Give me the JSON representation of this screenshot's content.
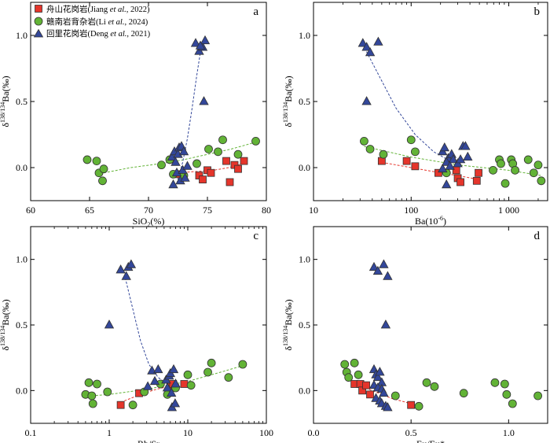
{
  "legend": [
    {
      "name": "舟山花岗岩(Jiang ",
      "et": "et al.",
      "tail": ", 2022)",
      "marker": "square",
      "color": "#e5352b"
    },
    {
      "name": "赣南岩背杂岩(Li ",
      "et": "et al.",
      "tail": ", 2024)",
      "marker": "circle",
      "color": "#62b336"
    },
    {
      "name": "回里花岗岩(Deng ",
      "et": "et al.",
      "tail": ", 2021)",
      "marker": "triangle",
      "color": "#33479a"
    }
  ],
  "colors": {
    "zhoushan": "#e5352b",
    "gannan": "#62b336",
    "huili": "#33479a",
    "stroke": "#333333"
  },
  "chart_data": [
    {
      "panel": "a",
      "type": "scatter",
      "xlabel": "SiO2(%)",
      "xlabel_base": "SiO",
      "xlabel_sub": "2",
      "xlabel_tail": "(%)",
      "ylabel": "δ138/134Ba(‰)",
      "xscale": "linear",
      "xlim": [
        60,
        80
      ],
      "ylim": [
        -0.25,
        1.25
      ],
      "xticks": [
        60,
        65,
        70,
        75,
        80
      ],
      "xticklabels": [
        "60",
        "65",
        "70",
        "75",
        "80"
      ],
      "yticks": [
        0.0,
        0.5,
        1.0
      ],
      "yticklabels": [
        "0.0",
        "0.5",
        "1.0"
      ],
      "series": [
        {
          "name": "舟山花岗岩",
          "marker": "square",
          "x": [
            72.6,
            74.3,
            74.6,
            75.0,
            75.3,
            76.6,
            76.9,
            77.3,
            77.6,
            78.1
          ],
          "y": [
            -0.05,
            -0.06,
            -0.09,
            -0.02,
            -0.04,
            0.05,
            -0.11,
            0.02,
            -0.01,
            0.05
          ]
        },
        {
          "name": "赣南岩背杂岩",
          "marker": "circle",
          "x": [
            64.8,
            65.6,
            65.8,
            66.2,
            66.1,
            71.1,
            71.8,
            72.1,
            73.0,
            74.1,
            75.1,
            75.9,
            76.3,
            77.6,
            79.1
          ],
          "y": [
            0.06,
            0.05,
            -0.04,
            -0.01,
            -0.1,
            0.02,
            0.06,
            -0.05,
            -0.06,
            0.03,
            0.14,
            0.12,
            0.21,
            0.1,
            0.2
          ]
        },
        {
          "name": "回里花岗岩",
          "marker": "triangle",
          "x": [
            72.0,
            72.2,
            72.3,
            72.5,
            72.6,
            72.8,
            73.0,
            72.4,
            72.9,
            73.3,
            72.1,
            72.7,
            73.1,
            74.0,
            74.3,
            74.6,
            74.8,
            74.4,
            74.7
          ],
          "y": [
            0.08,
            0.12,
            0.04,
            0.1,
            0.15,
            0.16,
            0.12,
            -0.04,
            -0.02,
            0.01,
            -0.13,
            -0.1,
            -0.08,
            0.94,
            0.88,
            0.91,
            0.96,
            0.92,
            0.5
          ]
        }
      ],
      "trend": [
        {
          "color": "#e5352b",
          "x": [
            72.3,
            74.0,
            75.5,
            76.8,
            78.0
          ],
          "y": [
            -0.04,
            -0.03,
            -0.02,
            0.0,
            0.03
          ]
        },
        {
          "color": "#62b336",
          "x": [
            66.2,
            68.5,
            71.0,
            73.0,
            75.0,
            77.0,
            79.0
          ],
          "y": [
            -0.04,
            0.0,
            0.03,
            0.06,
            0.1,
            0.14,
            0.19
          ]
        },
        {
          "color": "#33479a",
          "x": [
            72.4,
            72.9,
            73.3,
            73.7,
            74.1,
            74.5
          ],
          "y": [
            -0.12,
            0.04,
            0.22,
            0.45,
            0.7,
            0.93
          ]
        }
      ]
    },
    {
      "panel": "b",
      "type": "scatter",
      "xlabel": "Ba(10-6)",
      "xlabel_base": "Ba(10",
      "xlabel_sup": "-6",
      "xlabel_tail": ")",
      "ylabel": "δ138/134Ba(‰)",
      "xscale": "log",
      "xlim": [
        10,
        2500
      ],
      "ylim": [
        -0.25,
        1.25
      ],
      "xticks": [
        10,
        100,
        1000
      ],
      "xticklabels": [
        "10",
        "100",
        "1 000"
      ],
      "yticks": [
        0.0,
        0.5,
        1.0
      ],
      "yticklabels": [
        "0.0",
        "0.5",
        "1.0"
      ],
      "series": [
        {
          "name": "舟山花岗岩",
          "marker": "square",
          "x": [
            50,
            90,
            110,
            190,
            290,
            300,
            320,
            470,
            490
          ],
          "y": [
            0.05,
            0.05,
            0.01,
            -0.04,
            -0.02,
            -0.08,
            -0.11,
            -0.1,
            -0.04
          ]
        },
        {
          "name": "赣南岩背杂岩",
          "marker": "circle",
          "x": [
            33,
            38,
            52,
            100,
            110,
            230,
            690,
            800,
            830,
            920,
            1060,
            1100,
            1160,
            1580,
            1800,
            2000,
            2150
          ],
          "y": [
            0.2,
            0.14,
            0.1,
            0.21,
            0.12,
            -0.04,
            -0.02,
            0.06,
            0.03,
            -0.12,
            0.06,
            0.03,
            -0.02,
            0.06,
            -0.04,
            0.02,
            -0.1
          ]
        },
        {
          "name": "回里花岗岩",
          "marker": "triangle",
          "x": [
            32,
            35,
            38,
            46,
            35,
            210,
            220,
            240,
            260,
            270,
            300,
            320,
            210,
            230,
            250,
            340,
            360,
            380,
            230
          ],
          "y": [
            0.94,
            0.91,
            0.87,
            0.95,
            0.5,
            0.12,
            0.15,
            0.07,
            0.1,
            0.06,
            0.03,
            0.06,
            -0.01,
            0.04,
            0.01,
            0.16,
            0.16,
            0.08,
            -0.13
          ]
        }
      ],
      "trend": [
        {
          "color": "#e5352b",
          "x": [
            50,
            100,
            200,
            300,
            490
          ],
          "y": [
            0.04,
            0.0,
            -0.04,
            -0.06,
            -0.09
          ]
        },
        {
          "color": "#62b336",
          "x": [
            33,
            100,
            300,
            1000,
            2150
          ],
          "y": [
            0.16,
            0.08,
            0.02,
            -0.02,
            -0.06
          ]
        },
        {
          "color": "#33479a",
          "x": [
            32,
            45,
            70,
            110,
            170,
            250
          ],
          "y": [
            0.93,
            0.72,
            0.45,
            0.25,
            0.12,
            0.05
          ]
        }
      ]
    },
    {
      "panel": "c",
      "type": "scatter",
      "xlabel": "Rb/Sr",
      "ylabel": "δ138/134Ba(‰)",
      "xscale": "log",
      "xlim": [
        0.1,
        100
      ],
      "ylim": [
        -0.25,
        1.25
      ],
      "xticks": [
        0.1,
        1,
        10,
        100
      ],
      "xticklabels": [
        "0.1",
        "1",
        "10",
        "100"
      ],
      "yticks": [
        0.0,
        0.5,
        1.0
      ],
      "yticklabels": [
        "0.0",
        "0.5",
        "1.0"
      ],
      "series": [
        {
          "name": "舟山花岗岩",
          "marker": "square",
          "x": [
            1.4,
            2.4,
            6.2,
            6.5,
            9.0
          ],
          "y": [
            -0.11,
            -0.02,
            0.04,
            0.05,
            0.05
          ]
        },
        {
          "name": "赣南岩背杂岩",
          "marker": "circle",
          "x": [
            0.5,
            0.55,
            0.6,
            0.62,
            0.7,
            0.95,
            2.0,
            2.8,
            4.5,
            5.5,
            7.0,
            10.0,
            11.0,
            18.0,
            20.0,
            33.0,
            50.0
          ],
          "y": [
            -0.03,
            0.06,
            -0.04,
            -0.1,
            0.05,
            -0.01,
            -0.11,
            -0.01,
            0.05,
            -0.03,
            0.02,
            0.12,
            0.04,
            0.14,
            0.21,
            0.1,
            0.2
          ]
        },
        {
          "name": "回里花岗岩",
          "marker": "triangle",
          "x": [
            1.0,
            1.4,
            1.65,
            1.75,
            1.9,
            3.5,
            4.2,
            3.1,
            3.8,
            5.3,
            5.8,
            6.0,
            6.6,
            7.0,
            5.5,
            6.2,
            6.3,
            6.9
          ],
          "y": [
            0.5,
            0.92,
            0.87,
            0.94,
            0.96,
            0.15,
            0.16,
            0.03,
            0.07,
            0.08,
            0.11,
            0.13,
            0.16,
            0.05,
            0.02,
            -0.02,
            -0.13,
            -0.1
          ]
        }
      ],
      "trend": [
        {
          "color": "#e5352b",
          "x": [
            1.4,
            2.5,
            4.0,
            6.5,
            9.0
          ],
          "y": [
            -0.09,
            -0.03,
            0.01,
            0.04,
            0.05
          ]
        },
        {
          "color": "#62b336",
          "x": [
            0.6,
            1.0,
            3.0,
            10.0,
            30.0,
            50.0
          ],
          "y": [
            -0.04,
            -0.03,
            0.01,
            0.07,
            0.15,
            0.19
          ]
        },
        {
          "color": "#33479a",
          "x": [
            1.6,
            2.0,
            2.5,
            3.2,
            4.2,
            5.5
          ],
          "y": [
            0.86,
            0.62,
            0.38,
            0.2,
            0.1,
            0.05
          ]
        }
      ]
    },
    {
      "panel": "d",
      "type": "scatter",
      "xlabel": "Eu/Eu*",
      "ylabel": "δ138/134Ba(‰)",
      "xscale": "linear",
      "xlim": [
        0.0,
        1.2
      ],
      "ylim": [
        -0.25,
        1.25
      ],
      "xticks": [
        0.0,
        0.5,
        1.0
      ],
      "xticklabels": [
        "0.0",
        "0.5",
        "1.0"
      ],
      "yticks": [
        0.0,
        0.5,
        1.0
      ],
      "yticklabels": [
        "0.0",
        "0.5",
        "1.0"
      ],
      "series": [
        {
          "name": "舟山花岗岩",
          "marker": "square",
          "x": [
            0.21,
            0.24,
            0.25,
            0.27,
            0.29,
            0.5
          ],
          "y": [
            0.05,
            0.05,
            0.0,
            0.04,
            -0.03,
            -0.11
          ]
        },
        {
          "name": "赣南岩背杂岩",
          "marker": "circle",
          "x": [
            0.16,
            0.17,
            0.18,
            0.21,
            0.23,
            0.42,
            0.54,
            0.58,
            0.62,
            0.77,
            0.93,
            0.98,
            0.99,
            1.02,
            1.15
          ],
          "y": [
            0.2,
            0.14,
            0.1,
            0.21,
            0.12,
            -0.04,
            -0.12,
            0.06,
            0.03,
            -0.02,
            0.06,
            0.05,
            -0.03,
            -0.1,
            -0.04
          ]
        },
        {
          "name": "回里花岗岩",
          "marker": "triangle",
          "x": [
            0.31,
            0.33,
            0.36,
            0.38,
            0.37,
            0.31,
            0.32,
            0.33,
            0.34,
            0.35,
            0.31,
            0.33,
            0.35,
            0.36,
            0.32,
            0.34,
            0.35,
            0.37,
            0.38
          ],
          "y": [
            0.94,
            0.91,
            0.96,
            0.87,
            0.5,
            0.16,
            0.12,
            0.1,
            0.14,
            0.06,
            0.04,
            0.02,
            0.01,
            -0.02,
            -0.06,
            -0.08,
            -0.1,
            -0.12,
            -0.13
          ]
        }
      ],
      "trend": [
        {
          "color": "#e5352b",
          "x": [
            0.21,
            0.3,
            0.4,
            0.5
          ],
          "y": [
            0.05,
            0.0,
            -0.06,
            -0.1
          ]
        }
      ]
    }
  ]
}
